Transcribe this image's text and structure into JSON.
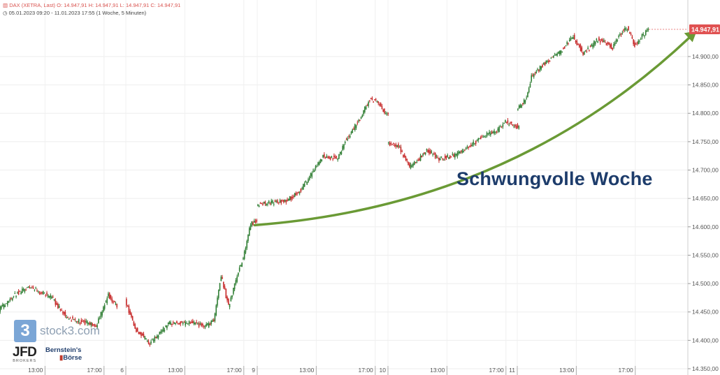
{
  "info": {
    "icon": "bar-chart-icon",
    "line1": "DAX (XETRA, Last)  O: 14.947,91  H: 14.947,91  L: 14.947,91  C: 14.947,91",
    "line2": "05.01.2023 09:20 - 11.01.2023 17:55   (1 Woche, 5 Minuten)"
  },
  "headline": "Schwungvolle Woche",
  "logos": {
    "stock3_mark": "3",
    "stock3_text": "stock3.com",
    "jfd_main": "JFD",
    "jfd_sub": "BROKERS",
    "bernstein_line1": "Bernstein's",
    "bernstein_line2": "Börse"
  },
  "colors": {
    "up": "#2e7d32",
    "down": "#c62828",
    "arrow": "#6a9a35",
    "last_price": "#e05252",
    "headline": "#1d3c6b"
  },
  "chart_data": {
    "type": "candlestick",
    "instrument": "DAX (XETRA, Last)",
    "interval": "5 Minuten",
    "last_price": 14947.91,
    "last_price_label": "14.947,91",
    "ylim": [
      14350,
      14975
    ],
    "y_ticks": [
      {
        "value": 14350,
        "label": "14.350,00"
      },
      {
        "value": 14400,
        "label": "14.400,00"
      },
      {
        "value": 14450,
        "label": "14.450,00"
      },
      {
        "value": 14500,
        "label": "14.500,00"
      },
      {
        "value": 14550,
        "label": "14.550,00"
      },
      {
        "value": 14600,
        "label": "14.600,00"
      },
      {
        "value": 14650,
        "label": "14.650,00"
      },
      {
        "value": 14700,
        "label": "14.700,00"
      },
      {
        "value": 14750,
        "label": "14.750,00"
      },
      {
        "value": 14800,
        "label": "14.800,00"
      },
      {
        "value": 14850,
        "label": "14.850,00"
      },
      {
        "value": 14900,
        "label": "14.900,00"
      }
    ],
    "x_ticks": [
      {
        "day": 0,
        "time": "13:00",
        "label": "13:00"
      },
      {
        "day": 0,
        "time": "17:00",
        "label": "17:00"
      },
      {
        "day": 1,
        "time": "09:00",
        "label": "6"
      },
      {
        "day": 1,
        "time": "13:00",
        "label": "13:00"
      },
      {
        "day": 1,
        "time": "17:00",
        "label": "17:00"
      },
      {
        "day": 2,
        "time": "09:00",
        "label": "9"
      },
      {
        "day": 2,
        "time": "13:00",
        "label": "13:00"
      },
      {
        "day": 2,
        "time": "17:00",
        "label": "17:00"
      },
      {
        "day": 3,
        "time": "09:00",
        "label": "10"
      },
      {
        "day": 3,
        "time": "13:00",
        "label": "13:00"
      },
      {
        "day": 3,
        "time": "17:00",
        "label": "17:00"
      },
      {
        "day": 4,
        "time": "09:00",
        "label": "11"
      },
      {
        "day": 4,
        "time": "13:00",
        "label": "13:00"
      },
      {
        "day": 4,
        "time": "17:00",
        "label": "17:00"
      }
    ],
    "path_keypoints": [
      {
        "day": 0,
        "time": "09:20",
        "value": 14440
      },
      {
        "day": 0,
        "time": "11:00",
        "value": 14480
      },
      {
        "day": 0,
        "time": "12:00",
        "value": 14495
      },
      {
        "day": 0,
        "time": "13:30",
        "value": 14475
      },
      {
        "day": 0,
        "time": "14:30",
        "value": 14440
      },
      {
        "day": 0,
        "time": "16:30",
        "value": 14425
      },
      {
        "day": 0,
        "time": "17:20",
        "value": 14480
      },
      {
        "day": 0,
        "time": "17:55",
        "value": 14460
      },
      {
        "day": 1,
        "time": "09:00",
        "value": 14470
      },
      {
        "day": 1,
        "time": "09:40",
        "value": 14420
      },
      {
        "day": 1,
        "time": "10:40",
        "value": 14395
      },
      {
        "day": 1,
        "time": "12:00",
        "value": 14430
      },
      {
        "day": 1,
        "time": "13:30",
        "value": 14430
      },
      {
        "day": 1,
        "time": "14:30",
        "value": 14425
      },
      {
        "day": 1,
        "time": "15:00",
        "value": 14435
      },
      {
        "day": 1,
        "time": "15:30",
        "value": 14515
      },
      {
        "day": 1,
        "time": "16:00",
        "value": 14460
      },
      {
        "day": 1,
        "time": "16:40",
        "value": 14520
      },
      {
        "day": 1,
        "time": "17:10",
        "value": 14560
      },
      {
        "day": 1,
        "time": "17:30",
        "value": 14605
      },
      {
        "day": 1,
        "time": "17:55",
        "value": 14610
      },
      {
        "day": 2,
        "time": "09:00",
        "value": 14640
      },
      {
        "day": 2,
        "time": "11:00",
        "value": 14645
      },
      {
        "day": 2,
        "time": "12:00",
        "value": 14665
      },
      {
        "day": 2,
        "time": "13:30",
        "value": 14725
      },
      {
        "day": 2,
        "time": "14:30",
        "value": 14720
      },
      {
        "day": 2,
        "time": "15:00",
        "value": 14750
      },
      {
        "day": 2,
        "time": "16:00",
        "value": 14790
      },
      {
        "day": 2,
        "time": "16:40",
        "value": 14825
      },
      {
        "day": 2,
        "time": "17:10",
        "value": 14820
      },
      {
        "day": 2,
        "time": "17:55",
        "value": 14795
      },
      {
        "day": 3,
        "time": "09:00",
        "value": 14745
      },
      {
        "day": 3,
        "time": "09:40",
        "value": 14745
      },
      {
        "day": 3,
        "time": "10:30",
        "value": 14705
      },
      {
        "day": 3,
        "time": "11:00",
        "value": 14715
      },
      {
        "day": 3,
        "time": "11:40",
        "value": 14735
      },
      {
        "day": 3,
        "time": "12:30",
        "value": 14720
      },
      {
        "day": 3,
        "time": "13:30",
        "value": 14725
      },
      {
        "day": 3,
        "time": "14:30",
        "value": 14740
      },
      {
        "day": 3,
        "time": "15:30",
        "value": 14760
      },
      {
        "day": 3,
        "time": "16:30",
        "value": 14770
      },
      {
        "day": 3,
        "time": "17:00",
        "value": 14785
      },
      {
        "day": 3,
        "time": "17:55",
        "value": 14775
      },
      {
        "day": 4,
        "time": "09:00",
        "value": 14805
      },
      {
        "day": 4,
        "time": "09:40",
        "value": 14825
      },
      {
        "day": 4,
        "time": "10:00",
        "value": 14865
      },
      {
        "day": 4,
        "time": "11:00",
        "value": 14890
      },
      {
        "day": 4,
        "time": "12:00",
        "value": 14910
      },
      {
        "day": 4,
        "time": "12:50",
        "value": 14935
      },
      {
        "day": 4,
        "time": "13:30",
        "value": 14905
      },
      {
        "day": 4,
        "time": "14:30",
        "value": 14930
      },
      {
        "day": 4,
        "time": "15:00",
        "value": 14925
      },
      {
        "day": 4,
        "time": "15:30",
        "value": 14915
      },
      {
        "day": 4,
        "time": "16:00",
        "value": 14940
      },
      {
        "day": 4,
        "time": "16:30",
        "value": 14950
      },
      {
        "day": 4,
        "time": "17:00",
        "value": 14920
      },
      {
        "day": 4,
        "time": "17:55",
        "value": 14948
      }
    ],
    "trend_arrow": {
      "from": {
        "day": 2,
        "time": "08:50",
        "value": 14603
      },
      "to": {
        "day": 4,
        "time": "21:10",
        "value": 14945
      }
    }
  }
}
